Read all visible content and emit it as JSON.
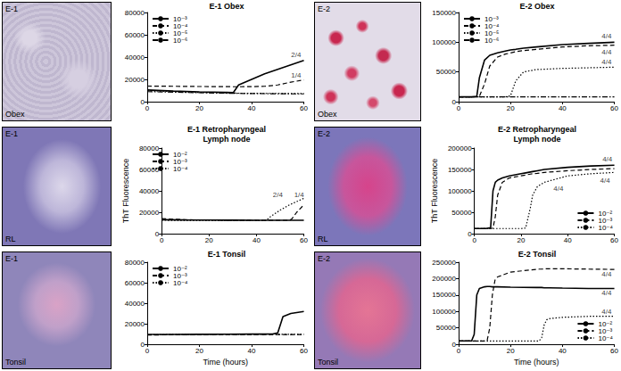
{
  "chart_data": [
    {
      "type": "line",
      "title": "E-1 Obex",
      "grid": false,
      "legend": "upper left",
      "x": [
        0,
        10,
        20,
        30,
        33,
        35,
        40,
        45,
        50,
        55,
        60
      ],
      "xlim": [
        0,
        60
      ],
      "xticks": [
        0,
        20,
        40,
        60
      ],
      "ylim": [
        0,
        80000
      ],
      "yticks": [
        0,
        20000,
        40000,
        60000,
        80000
      ],
      "series": [
        {
          "name": "10⁻³",
          "color": "#000000",
          "line_style": "solid",
          "values": [
            10500,
            9500,
            8800,
            8300,
            8200,
            15000,
            20000,
            25000,
            29000,
            33000,
            37000
          ]
        },
        {
          "name": "10⁻⁴",
          "color": "#000000",
          "line_style": "dashed",
          "values": [
            14000,
            13800,
            13600,
            13500,
            13400,
            13400,
            13500,
            13800,
            15000,
            17500,
            19500
          ]
        },
        {
          "name": "10⁻⁵",
          "color": "#000000",
          "line_style": "dotted",
          "values": [
            10000,
            9000,
            8300,
            7800,
            7700,
            7600,
            7500,
            7400,
            7400,
            7300,
            7300
          ]
        },
        {
          "name": "10⁻⁶",
          "color": "#000000",
          "line_style": "dashdot",
          "values": [
            9000,
            8500,
            8000,
            7600,
            7500,
            7400,
            7300,
            7200,
            7100,
            7000,
            7000
          ]
        }
      ],
      "annotations": [
        {
          "text": "2/4",
          "x": 57,
          "y": 42000
        },
        {
          "text": "1/4",
          "x": 57,
          "y": 24000
        }
      ]
    },
    {
      "type": "line",
      "title": "E-1 Retropharyngeal\nLymph node",
      "grid": false,
      "legend": "upper left",
      "ylabel": "ThT Fluorescence",
      "x": [
        0,
        10,
        20,
        30,
        40,
        44,
        46,
        50,
        54,
        55,
        57,
        60
      ],
      "xlim": [
        0,
        60
      ],
      "xticks": [
        0,
        20,
        40,
        60
      ],
      "ylim": [
        0,
        80000
      ],
      "yticks": [
        0,
        20000,
        40000,
        60000,
        80000
      ],
      "series": [
        {
          "name": "10⁻²",
          "color": "#000000",
          "line_style": "solid",
          "values": [
            13000,
            12800,
            12700,
            12600,
            12500,
            12500,
            12500,
            12500,
            12500,
            12500,
            12500,
            12500
          ]
        },
        {
          "name": "10⁻³",
          "color": "#000000",
          "line_style": "dashed",
          "values": [
            14000,
            13000,
            12800,
            12600,
            12500,
            12500,
            12500,
            12500,
            12500,
            14000,
            20000,
            27000
          ]
        },
        {
          "name": "10⁻⁴",
          "color": "#000000",
          "line_style": "dotted",
          "values": [
            12500,
            12400,
            12300,
            12300,
            12300,
            12300,
            16000,
            22000,
            27000,
            28000,
            30000,
            33000
          ]
        }
      ],
      "annotations": [
        {
          "text": "2/4",
          "x": 49,
          "y": 36000
        },
        {
          "text": "1/4",
          "x": 58,
          "y": 36000
        }
      ]
    },
    {
      "type": "line",
      "title": "E-1 Tonsil",
      "grid": false,
      "legend": "upper left",
      "xlabel": "Time (hours)",
      "x": [
        0,
        10,
        20,
        30,
        40,
        48,
        50,
        52,
        55,
        60
      ],
      "xlim": [
        0,
        60
      ],
      "xticks": [
        0,
        20,
        40,
        60
      ],
      "ylim": [
        0,
        80000
      ],
      "yticks": [
        0,
        20000,
        40000,
        60000,
        80000
      ],
      "series": [
        {
          "name": "10⁻²",
          "color": "#000000",
          "line_style": "solid",
          "values": [
            9500,
            9600,
            9700,
            9800,
            9900,
            10000,
            11000,
            27000,
            30000,
            32000
          ]
        },
        {
          "name": "10⁻³",
          "color": "#000000",
          "line_style": "dashed",
          "values": [
            9000,
            9200,
            9300,
            9400,
            9500,
            9500,
            9500,
            9500,
            9500,
            9500
          ]
        },
        {
          "name": "10⁻⁴",
          "color": "#000000",
          "line_style": "dotted",
          "values": [
            9300,
            9400,
            9500,
            9600,
            9600,
            9600,
            9600,
            9600,
            9600,
            9600
          ]
        }
      ],
      "annotations": []
    },
    {
      "type": "line",
      "title": "E-2 Obex",
      "grid": false,
      "legend": "upper left",
      "x": [
        0,
        5,
        7,
        8,
        10,
        12,
        15,
        18,
        20,
        22,
        25,
        30,
        40,
        50,
        60
      ],
      "xlim": [
        0,
        60
      ],
      "xticks": [
        0,
        20,
        40,
        60
      ],
      "ylim": [
        0,
        150000
      ],
      "yticks": [
        0,
        50000,
        100000,
        150000
      ],
      "series": [
        {
          "name": "10⁻³",
          "color": "#000000",
          "line_style": "solid",
          "values": [
            8000,
            8000,
            9000,
            40000,
            70000,
            78000,
            82000,
            85000,
            87000,
            88000,
            90000,
            92000,
            96000,
            98000,
            100000
          ]
        },
        {
          "name": "10⁻⁴",
          "color": "#000000",
          "line_style": "dashed",
          "values": [
            8000,
            8000,
            8000,
            9000,
            30000,
            60000,
            75000,
            80000,
            82000,
            84000,
            86000,
            88000,
            92000,
            94000,
            95000
          ]
        },
        {
          "name": "10⁻⁵",
          "color": "#000000",
          "line_style": "dotted",
          "values": [
            8000,
            8000,
            8000,
            8000,
            8000,
            8000,
            8000,
            8000,
            10000,
            35000,
            50000,
            54000,
            56000,
            57000,
            58000
          ]
        },
        {
          "name": "10⁻⁶",
          "color": "#000000",
          "line_style": "dashdot",
          "values": [
            8000,
            8000,
            8000,
            8000,
            8000,
            8000,
            8000,
            8000,
            8000,
            8000,
            8000,
            8000,
            8000,
            8000,
            8000
          ]
        }
      ],
      "annotations": [
        {
          "text": "4/4",
          "x": 57,
          "y": 110000
        },
        {
          "text": "4/4",
          "x": 57,
          "y": 83000
        },
        {
          "text": "4/4",
          "x": 57,
          "y": 67000
        }
      ]
    },
    {
      "type": "line",
      "title": "E-2 Retropharyngeal\nLymph node",
      "grid": false,
      "legend": "lower right",
      "ylabel": "ThT Fluorescence",
      "x": [
        0,
        5,
        7,
        8,
        9,
        10,
        12,
        15,
        20,
        22,
        24,
        25,
        27,
        30,
        40,
        50,
        60
      ],
      "xlim": [
        0,
        60
      ],
      "xticks": [
        0,
        20,
        40,
        60
      ],
      "ylim": [
        0,
        200000
      ],
      "yticks": [
        0,
        50000,
        100000,
        150000,
        200000
      ],
      "series": [
        {
          "name": "10⁻²",
          "color": "#000000",
          "line_style": "solid",
          "values": [
            12000,
            12000,
            14000,
            100000,
            120000,
            125000,
            130000,
            135000,
            140000,
            142000,
            144000,
            145000,
            147000,
            150000,
            155000,
            158000,
            160000
          ]
        },
        {
          "name": "10⁻³",
          "color": "#000000",
          "line_style": "dashed",
          "values": [
            12000,
            12000,
            12000,
            13000,
            40000,
            90000,
            120000,
            130000,
            135000,
            137000,
            139000,
            140000,
            141000,
            143000,
            147000,
            150000,
            152000
          ]
        },
        {
          "name": "10⁻⁴",
          "color": "#000000",
          "line_style": "dotted",
          "values": [
            12000,
            12000,
            12000,
            12000,
            12000,
            12000,
            12000,
            12000,
            12000,
            13000,
            60000,
            90000,
            110000,
            120000,
            135000,
            140000,
            143000
          ]
        }
      ],
      "annotations": [
        {
          "text": "4/4",
          "x": 57,
          "y": 174000
        },
        {
          "text": "4/4",
          "x": 36,
          "y": 105000
        },
        {
          "text": "4/4",
          "x": 56,
          "y": 124000
        }
      ]
    },
    {
      "type": "line",
      "title": "E-2 Tonsil",
      "grid": false,
      "legend": "lower right",
      "xlabel": "Time (hours)",
      "x": [
        0,
        5,
        6,
        7,
        8,
        10,
        11,
        12,
        13,
        14,
        15,
        20,
        30,
        31,
        32,
        33,
        34,
        35,
        40,
        50,
        60
      ],
      "xlim": [
        0,
        60
      ],
      "xticks": [
        0,
        20,
        40,
        60
      ],
      "ylim": [
        0,
        250000
      ],
      "yticks": [
        0,
        50000,
        100000,
        150000,
        200000,
        250000
      ],
      "series": [
        {
          "name": "10⁻²",
          "color": "#000000",
          "line_style": "solid",
          "values": [
            10000,
            10000,
            30000,
            150000,
            170000,
            175000,
            176000,
            176000,
            175000,
            175000,
            175000,
            174000,
            173000,
            173000,
            173000,
            172000,
            172000,
            172000,
            171000,
            170000,
            170000
          ]
        },
        {
          "name": "10⁻³",
          "color": "#000000",
          "line_style": "dashed",
          "values": [
            10000,
            10000,
            10000,
            10000,
            10000,
            10000,
            12000,
            50000,
            150000,
            195000,
            205000,
            220000,
            228000,
            229000,
            229000,
            230000,
            230000,
            230000,
            230000,
            229000,
            228000
          ]
        },
        {
          "name": "10⁻⁴",
          "color": "#000000",
          "line_style": "dotted",
          "values": [
            10000,
            10000,
            10000,
            10000,
            10000,
            10000,
            10000,
            10000,
            10000,
            10000,
            10000,
            10000,
            10000,
            10000,
            20000,
            60000,
            75000,
            78000,
            82000,
            85000,
            85000
          ]
        }
      ],
      "annotations": [
        {
          "text": "4/4",
          "x": 57,
          "y": 214000
        },
        {
          "text": "4/4",
          "x": 57,
          "y": 155000
        },
        {
          "text": "4/4",
          "x": 57,
          "y": 98000
        }
      ]
    }
  ],
  "images": [
    {
      "sample": "E-1",
      "tissue": "Obex"
    },
    {
      "sample": "E-1",
      "tissue": "RL"
    },
    {
      "sample": "E-1",
      "tissue": "Tonsil"
    },
    {
      "sample": "E-2",
      "tissue": "Obex"
    },
    {
      "sample": "E-2",
      "tissue": "RL"
    },
    {
      "sample": "E-2",
      "tissue": "Tonsil"
    }
  ]
}
